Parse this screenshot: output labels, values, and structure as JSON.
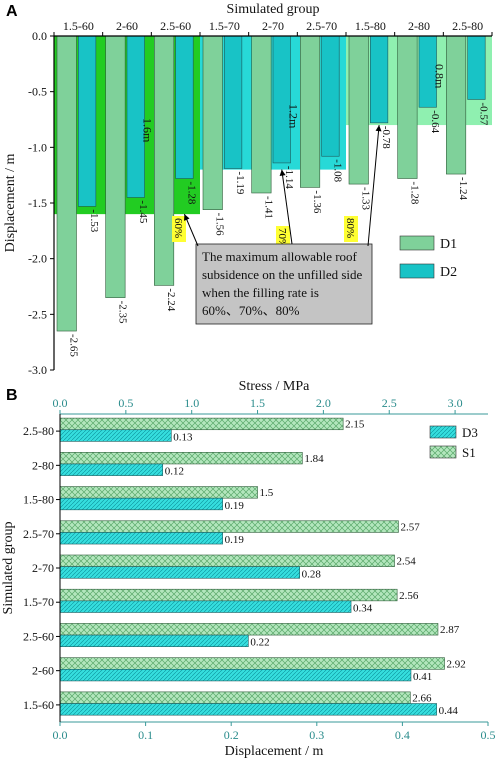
{
  "panel_a_letter": "A",
  "panel_b_letter": "B",
  "chart_data": [
    {
      "panel": "A",
      "type": "bar",
      "title": "",
      "xlabel": "Simulated group",
      "ylabel": "Displacement / m",
      "ylim": [
        -3.0,
        0.0
      ],
      "yticks": [
        0.0,
        -0.5,
        -1.0,
        -1.5,
        -2.0,
        -2.5,
        -3.0
      ],
      "ytick_labels": [
        "0.0",
        "-0.5",
        "-1.0",
        "-1.5",
        "-2.0",
        "-2.5",
        "-3.0"
      ],
      "categories": [
        "1.5-60",
        "2-60",
        "2.5-60",
        "1.5-70",
        "2-70",
        "2.5-70",
        "1.5-80",
        "2-80",
        "2.5-80"
      ],
      "series": [
        {
          "name": "D1",
          "color": "#7fd19a",
          "values": [
            -2.65,
            -2.35,
            -2.24,
            -1.56,
            -1.41,
            -1.36,
            -1.33,
            -1.28,
            -1.24
          ]
        },
        {
          "name": "D2",
          "color": "#18c3c6",
          "values": [
            -1.53,
            -1.45,
            -1.28,
            -1.19,
            -1.14,
            -1.08,
            -0.78,
            -0.64,
            -0.57
          ]
        }
      ],
      "data_labels": {
        "D1": [
          "-2.65",
          "-2.35",
          "-2.24",
          "-1.56",
          "-1.41",
          "-1.36",
          "-1.33",
          "-1.28",
          "-1.24"
        ],
        "D2": [
          "-1.53",
          "-1.45",
          "-1.28",
          "-1.19",
          "-1.14",
          "-1.08",
          "-0.78",
          "-0.64",
          "-0.57"
        ]
      },
      "regions": [
        {
          "label": "1.6m",
          "depth": 1.6,
          "color": "#22cc22",
          "groups": [
            0,
            2
          ],
          "rate_label": "60%"
        },
        {
          "label": "1.2m",
          "depth": 1.2,
          "color": "#27d9d7",
          "groups": [
            3,
            5
          ],
          "rate_label": "70%"
        },
        {
          "label": "0.8m",
          "depth": 0.8,
          "color": "#8ff0b0",
          "groups": [
            6,
            8
          ],
          "rate_label": "80%"
        }
      ],
      "annotation_lines": [
        "The maximum allowable roof",
        "subsidence on the unfilled side",
        "when the filling rate is",
        "60%、70%、80%"
      ],
      "legend": {
        "position": "right",
        "entries": [
          "D1",
          "D2"
        ]
      },
      "grid": false
    },
    {
      "panel": "B",
      "type": "bar",
      "orientation": "horizontal",
      "title": "",
      "ylabel": "Simulated group",
      "x_top_label": "Stress / MPa",
      "x_bottom_label": "Displacement / m",
      "x_top_lim": [
        0.0,
        3.25
      ],
      "x_top_ticks": [
        "0.0",
        "0.5",
        "1.0",
        "1.5",
        "2.0",
        "2.5",
        "3.0"
      ],
      "x_bottom_lim": [
        0.0,
        0.5
      ],
      "x_bottom_ticks": [
        "0.0",
        "0.1",
        "0.2",
        "0.3",
        "0.4",
        "0.5"
      ],
      "categories": [
        "2.5-80",
        "2-80",
        "1.5-80",
        "2.5-70",
        "2-70",
        "1.5-70",
        "2.5-60",
        "2-60",
        "1.5-60"
      ],
      "series": [
        {
          "name": "S1",
          "axis": "stress",
          "color": "#b3e6bd",
          "values": [
            2.15,
            1.84,
            1.5,
            2.57,
            2.54,
            2.56,
            2.87,
            2.92,
            2.66
          ]
        },
        {
          "name": "D3",
          "axis": "displacement",
          "color": "#35dede",
          "values": [
            0.13,
            0.12,
            0.19,
            0.19,
            0.28,
            0.34,
            0.22,
            0.41,
            0.44
          ]
        }
      ],
      "data_labels": {
        "S1": [
          "2.15",
          "1.84",
          "1.5",
          "2.57",
          "2.54",
          "2.56",
          "2.87",
          "2.92",
          "2.66"
        ],
        "D3": [
          "0.13",
          "0.12",
          "0.19",
          "0.19",
          "0.28",
          "0.34",
          "0.22",
          "0.41",
          "0.44"
        ]
      },
      "legend": {
        "position": "top-right",
        "entries": [
          "D3",
          "S1"
        ]
      },
      "grid": false
    }
  ]
}
